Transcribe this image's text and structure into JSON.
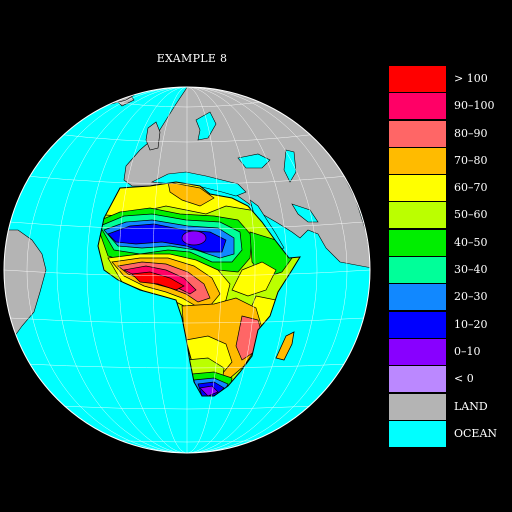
{
  "title": "EXAMPLE 8",
  "colors": {
    "ocean": "#00ffff",
    "land": "#b4b4b4",
    "grid": "#ffffff"
  },
  "legend": [
    {
      "label": "> 100",
      "color": "#ff0000"
    },
    {
      "label": "90–100",
      "color": "#ff0066"
    },
    {
      "label": "80–90",
      "color": "#ff6666"
    },
    {
      "label": "70–80",
      "color": "#ffbb00"
    },
    {
      "label": "60–70",
      "color": "#ffff00"
    },
    {
      "label": "50–60",
      "color": "#bbff00"
    },
    {
      "label": "40–50",
      "color": "#00ee00"
    },
    {
      "label": "30–40",
      "color": "#00ff99"
    },
    {
      "label": "20–30",
      "color": "#1188ff"
    },
    {
      "label": "10–20",
      "color": "#0000ff"
    },
    {
      "label": "0–10",
      "color": "#8800ff"
    },
    {
      "label": "< 0",
      "color": "#bb88ff"
    },
    {
      "label": "LAND",
      "color": "#b4b4b4"
    },
    {
      "label": "OCEAN",
      "color": "#00ffff"
    }
  ]
}
